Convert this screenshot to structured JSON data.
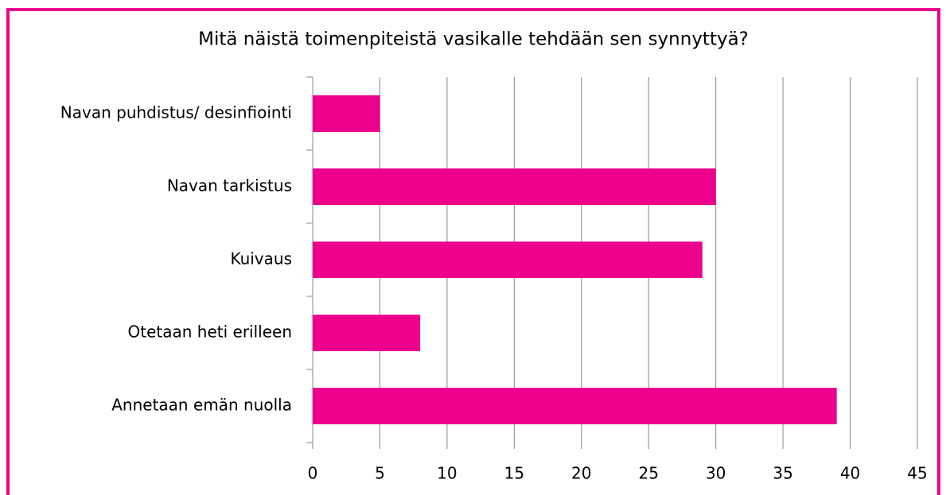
{
  "chart_data": {
    "type": "barh",
    "title": "Mitä näistä toimenpiteistä vasikalle tehdään sen synnyttyä?",
    "categories": [
      "Navan puhdistus/ desinfiointi",
      "Navan tarkistus",
      "Kuivaus",
      "Otetaan heti erilleen",
      "Annetaan emän nuolla"
    ],
    "values": [
      5,
      30,
      29,
      8,
      39
    ],
    "color": "#ec008c",
    "xlim": [
      0,
      45
    ],
    "xticks": [
      0,
      5,
      10,
      15,
      20,
      25,
      30,
      35,
      40,
      45
    ],
    "grid": true
  }
}
